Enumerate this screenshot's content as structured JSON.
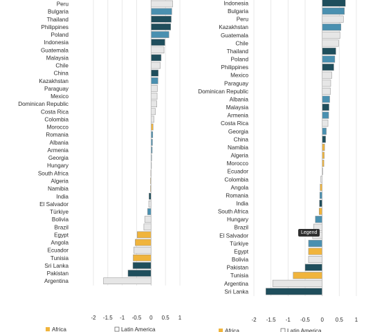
{
  "colors": {
    "africa": "#f0b43c",
    "asia": "#1f4e5c",
    "europe": "#4a90b0",
    "latin_america": "#e6e6e6",
    "stroke": "#8a8a8a"
  },
  "tooltip": "Legend",
  "chart_data": [
    {
      "type": "bar",
      "orientation": "horizontal",
      "xlim": [
        -2,
        1
      ],
      "xticks": [
        "-2",
        "-1.5",
        "-1",
        "-0.5",
        "0",
        "0.5",
        "1"
      ],
      "categories": [
        "Peru",
        "Bulgaria",
        "Thailand",
        "Philippines",
        "Poland",
        "Indonesia",
        "Guatemala",
        "Malaysia",
        "Chile",
        "China",
        "Kazakhstan",
        "Paraguay",
        "Mexico",
        "Dominican Republic",
        "Costa Rica",
        "Colombia",
        "Morocco",
        "Romania",
        "Albania",
        "Armenia",
        "Georgia",
        "Hungary",
        "South Africa",
        "Algeria",
        "Namibia",
        "India",
        "El Salvador",
        "Türkiye",
        "Bolivia",
        "Brazil",
        "Egypt",
        "Angola",
        "Ecuador",
        "Tunisia",
        "Sri Lanka",
        "Pakistan",
        "Argentina"
      ],
      "values": [
        0.75,
        0.72,
        0.7,
        0.68,
        0.62,
        0.48,
        0.45,
        0.35,
        0.32,
        0.25,
        0.24,
        0.22,
        0.21,
        0.2,
        0.15,
        0.1,
        0.07,
        0.06,
        0.05,
        0.04,
        0.02,
        0.01,
        -0.01,
        -0.02,
        -0.02,
        -0.07,
        -0.08,
        -0.12,
        -0.22,
        -0.25,
        -0.48,
        -0.55,
        -0.6,
        -0.62,
        -0.63,
        -0.8,
        -1.65
      ],
      "regions": [
        "latin",
        "europe",
        "asia",
        "asia",
        "europe",
        "asia",
        "latin",
        "asia",
        "latin",
        "asia",
        "europe",
        "latin",
        "latin",
        "latin",
        "latin",
        "latin",
        "africa",
        "europe",
        "europe",
        "europe",
        "europe",
        "europe",
        "africa",
        "africa",
        "africa",
        "asia",
        "latin",
        "europe",
        "latin",
        "latin",
        "africa",
        "africa",
        "latin",
        "africa",
        "asia",
        "asia",
        "latin"
      ],
      "legend": [
        "Africa",
        "Latin America"
      ]
    },
    {
      "type": "bar",
      "orientation": "horizontal",
      "xlim": [
        -2,
        1
      ],
      "xticks": [
        "-2",
        "-1.5",
        "-1",
        "-0.5",
        "0",
        "0.5",
        "1"
      ],
      "categories": [
        "Indonesia",
        "Bulgaria",
        "Peru",
        "Kazakhstan",
        "Guatemala",
        "Chile",
        "Thailand",
        "Poland",
        "Philippines",
        "Mexico",
        "Paraguay",
        "Dominican Republic",
        "Albania",
        "Malaysia",
        "Armenia",
        "Costa Rica",
        "Georgia",
        "China",
        "Namibia",
        "Algeria",
        "Morocco",
        "Ecuador",
        "Colombia",
        "Angola",
        "Romania",
        "India",
        "South Africa",
        "Hungary",
        "Brazil",
        "El Salvador",
        "Türkiye",
        "Egypt",
        "Bolivia",
        "Pakistan",
        "Tunisia",
        "Argentina",
        "Sri Lanka"
      ],
      "values": [
        0.68,
        0.65,
        0.62,
        0.55,
        0.52,
        0.48,
        0.4,
        0.37,
        0.34,
        0.28,
        0.25,
        0.24,
        0.22,
        0.2,
        0.19,
        0.17,
        0.12,
        0.1,
        0.07,
        0.06,
        0.05,
        0.02,
        -0.04,
        -0.06,
        -0.07,
        -0.08,
        -0.09,
        -0.2,
        -0.25,
        -0.28,
        -0.4,
        -0.4,
        -0.4,
        -0.5,
        -0.85,
        -1.45,
        -1.65
      ],
      "regions": [
        "asia",
        "europe",
        "latin",
        "europe",
        "latin",
        "latin",
        "asia",
        "europe",
        "asia",
        "latin",
        "latin",
        "latin",
        "europe",
        "asia",
        "europe",
        "latin",
        "europe",
        "asia",
        "africa",
        "africa",
        "africa",
        "latin",
        "latin",
        "africa",
        "europe",
        "asia",
        "africa",
        "europe",
        "latin",
        "latin",
        "europe",
        "africa",
        "latin",
        "asia",
        "africa",
        "latin",
        "asia"
      ],
      "legend": [
        "Africa",
        "Latin America"
      ]
    }
  ]
}
